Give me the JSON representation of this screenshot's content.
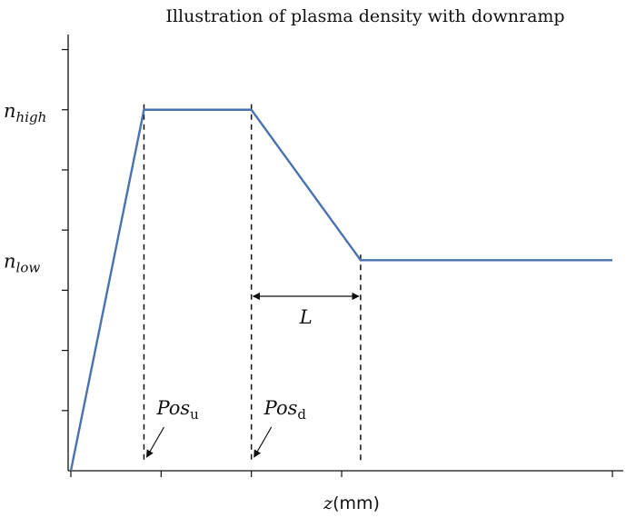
{
  "chart_data": {
    "type": "line",
    "title": "Illustration of plasma density with downramp",
    "xlabel": {
      "var": "z",
      "unit": "(mm)"
    },
    "ylabel": "",
    "series": [
      {
        "color": "#4a72b0",
        "x": [
          0,
          0.81,
          2.0,
          3.21,
          6.0
        ],
        "y": [
          0,
          6,
          6,
          3.5,
          3.5
        ]
      }
    ],
    "xlim": [
      -0.03,
      6.12
    ],
    "ylim": [
      0,
      7.25
    ],
    "x_ticks": [
      0,
      1,
      2,
      3,
      6
    ],
    "y_ticks": [
      1,
      2,
      3,
      4,
      5,
      6,
      7
    ],
    "y_labels": [
      {
        "base": "n",
        "sub": "high",
        "y": 6
      },
      {
        "base": "n",
        "sub": "low",
        "y": 3.5
      }
    ],
    "markers": [
      {
        "base": "Pos",
        "sub": "u",
        "x": 0.81,
        "y_top": 6
      },
      {
        "base": "Pos",
        "sub": "d",
        "x": 2.0,
        "y_top": 6
      },
      {
        "x": 3.21,
        "y_top": 3.5
      }
    ],
    "span": {
      "label": "L",
      "from": 2.0,
      "to": 3.21,
      "y": 2.9
    },
    "grid": false
  }
}
